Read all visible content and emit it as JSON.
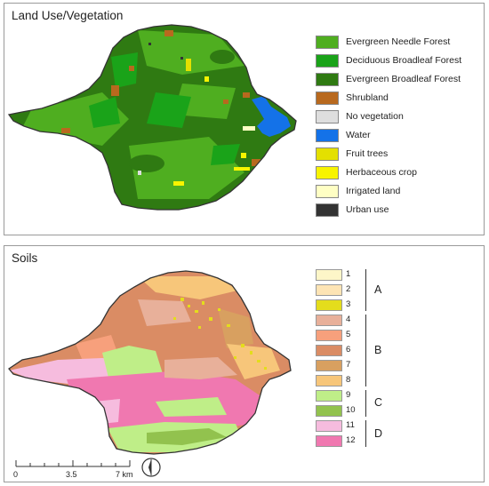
{
  "land_use": {
    "title": "Land Use/Vegetation",
    "legend": [
      {
        "label": "Evergreen Needle Forest",
        "color": "#4fae20"
      },
      {
        "label": "Deciduous Broadleaf Forest",
        "color": "#1aa319"
      },
      {
        "label": "Evergreen Broadleaf Forest",
        "color": "#2f7a12"
      },
      {
        "label": "Shrubland",
        "color": "#b8691e"
      },
      {
        "label": "No vegetation",
        "color": "#dedede"
      },
      {
        "label": "Water",
        "color": "#1472e8"
      },
      {
        "label": "Fruit trees",
        "color": "#e4e000"
      },
      {
        "label": "Herbaceous crop",
        "color": "#f8f400"
      },
      {
        "label": "Irrigated land",
        "color": "#ffffc4"
      },
      {
        "label": "Urban use",
        "color": "#333333"
      }
    ]
  },
  "soils": {
    "title": "Soils",
    "classes": [
      {
        "num": "1",
        "color": "#fdf6c8"
      },
      {
        "num": "2",
        "color": "#fde4b4"
      },
      {
        "num": "3",
        "color": "#e4dd1c"
      },
      {
        "num": "4",
        "color": "#e8b09a"
      },
      {
        "num": "5",
        "color": "#f7a07c"
      },
      {
        "num": "6",
        "color": "#da8c64"
      },
      {
        "num": "7",
        "color": "#d8a060"
      },
      {
        "num": "8",
        "color": "#f7c67a"
      },
      {
        "num": "9",
        "color": "#bfee88"
      },
      {
        "num": "10",
        "color": "#92c24e"
      },
      {
        "num": "11",
        "color": "#f6bcde"
      },
      {
        "num": "12",
        "color": "#f078b0"
      }
    ],
    "groups": [
      {
        "letter": "A",
        "range": "1-3"
      },
      {
        "letter": "B",
        "range": "4-8"
      },
      {
        "letter": "C",
        "range": "9-10"
      },
      {
        "letter": "D",
        "range": "11-12"
      }
    ]
  },
  "scale_bar": {
    "labels": [
      "0",
      "3.5",
      "7 km"
    ]
  },
  "north_icon": "north-arrow-icon"
}
